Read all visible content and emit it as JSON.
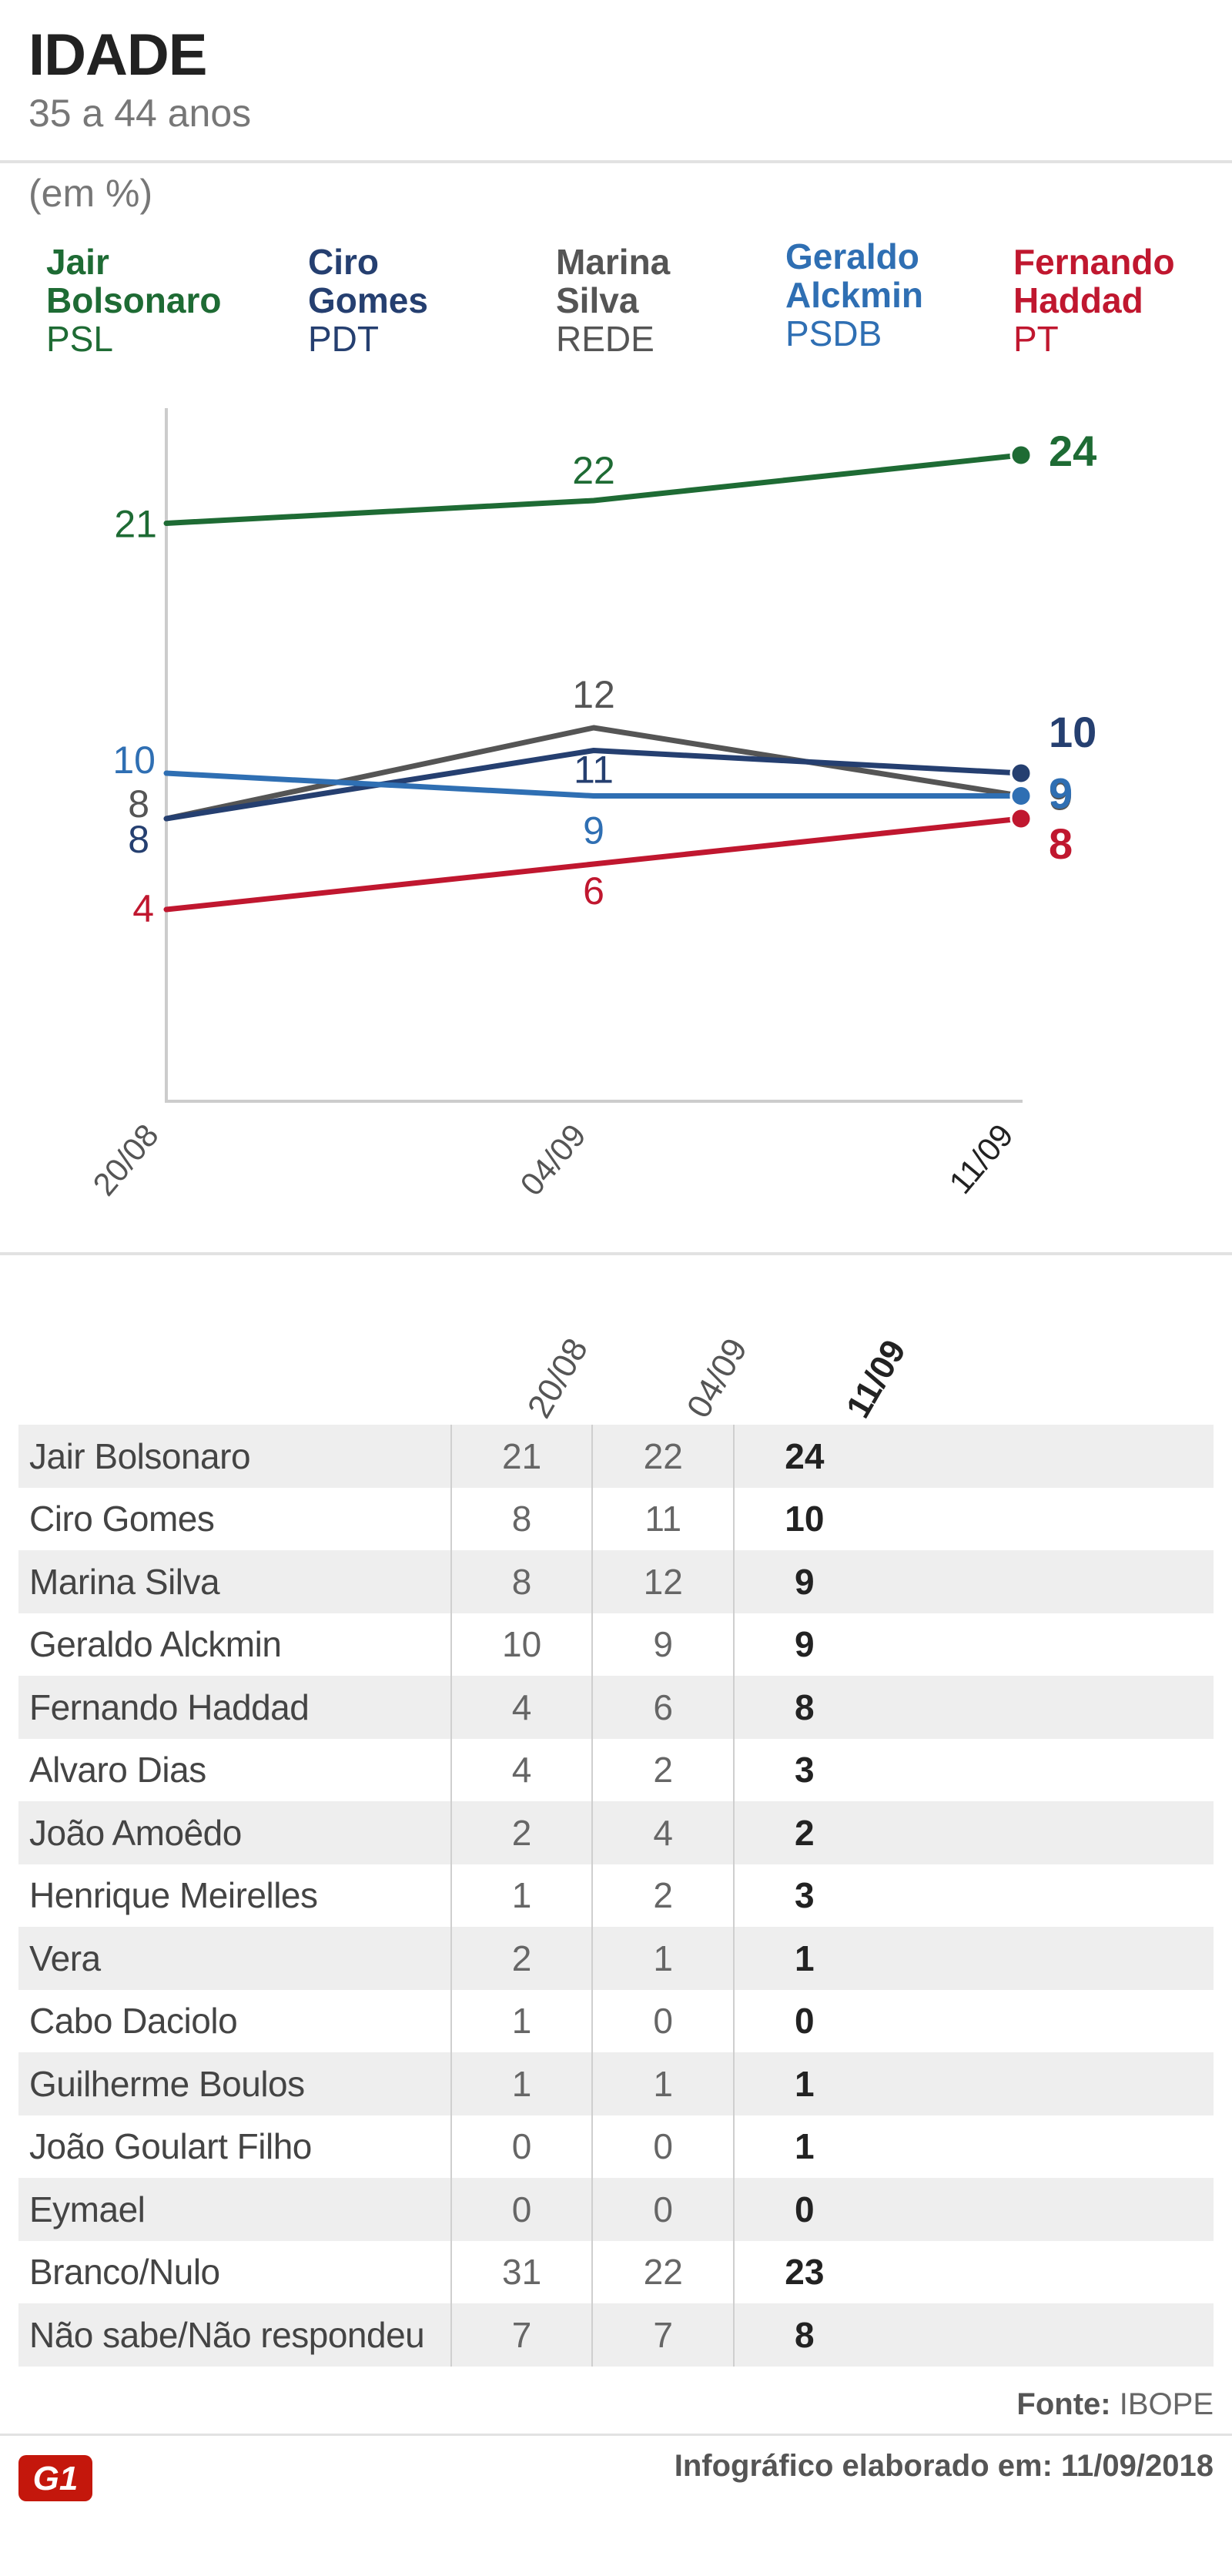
{
  "header": {
    "title": "IDADE",
    "subtitle": "35 a 44 anos",
    "unit": "(em %)"
  },
  "legend": [
    {
      "name": "Jair\nBolsonaro",
      "party": "PSL",
      "color": "#1e6b34"
    },
    {
      "name": "Ciro\nGomes",
      "party": "PDT",
      "color": "#253f70"
    },
    {
      "name": "Marina\nSilva",
      "party": "REDE",
      "color": "#555555"
    },
    {
      "name": "Geraldo\nAlckmin",
      "party": "PSDB",
      "color": "#2f6fb3"
    },
    {
      "name": "Fernando\nHaddad",
      "party": "PT",
      "color": "#c0172f"
    }
  ],
  "chart_data": {
    "type": "line",
    "x": [
      "20/08",
      "04/09",
      "11/09"
    ],
    "ylim": [
      0,
      26
    ],
    "grid": false,
    "series": [
      {
        "name": "Jair Bolsonaro",
        "values": [
          21,
          22,
          24
        ],
        "color": "#1e6b34"
      },
      {
        "name": "Marina Silva",
        "values": [
          8,
          12,
          9
        ],
        "color": "#555555"
      },
      {
        "name": "Ciro Gomes",
        "values": [
          8,
          11,
          10
        ],
        "color": "#253f70"
      },
      {
        "name": "Geraldo Alckmin",
        "values": [
          10,
          9,
          9
        ],
        "color": "#2f6fb3"
      },
      {
        "name": "Fernando Haddad",
        "values": [
          4,
          6,
          8
        ],
        "color": "#c0172f"
      }
    ]
  },
  "table": {
    "columns": [
      "20/08",
      "04/09",
      "11/09"
    ],
    "rows": [
      {
        "name": "Jair Bolsonaro",
        "values": [
          "21",
          "22",
          "24"
        ]
      },
      {
        "name": "Ciro Gomes",
        "values": [
          "8",
          "11",
          "10"
        ]
      },
      {
        "name": "Marina Silva",
        "values": [
          "8",
          "12",
          "9"
        ]
      },
      {
        "name": "Geraldo Alckmin",
        "values": [
          "10",
          "9",
          "9"
        ]
      },
      {
        "name": "Fernando Haddad",
        "values": [
          "4",
          "6",
          "8"
        ]
      },
      {
        "name": "Alvaro Dias",
        "values": [
          "4",
          "2",
          "3"
        ]
      },
      {
        "name": "João Amoêdo",
        "values": [
          "2",
          "4",
          "2"
        ]
      },
      {
        "name": "Henrique Meirelles",
        "values": [
          "1",
          "2",
          "3"
        ]
      },
      {
        "name": "Vera",
        "values": [
          "2",
          "1",
          "1"
        ]
      },
      {
        "name": "Cabo Daciolo",
        "values": [
          "1",
          "0",
          "0"
        ]
      },
      {
        "name": "Guilherme Boulos",
        "values": [
          "1",
          "1",
          "1"
        ]
      },
      {
        "name": "João Goulart Filho",
        "values": [
          "0",
          "0",
          "1"
        ]
      },
      {
        "name": "Eymael",
        "values": [
          "0",
          "0",
          "0"
        ]
      },
      {
        "name": "Branco/Nulo",
        "values": [
          "31",
          "22",
          "23"
        ]
      },
      {
        "name": "Não sabe/Não respondeu",
        "values": [
          "7",
          "7",
          "8"
        ]
      }
    ]
  },
  "footer": {
    "source_label": "Fonte:",
    "source_value": "IBOPE",
    "credit": "Infográfico elaborado em: 11/09/2018",
    "logo_text": "G1"
  }
}
